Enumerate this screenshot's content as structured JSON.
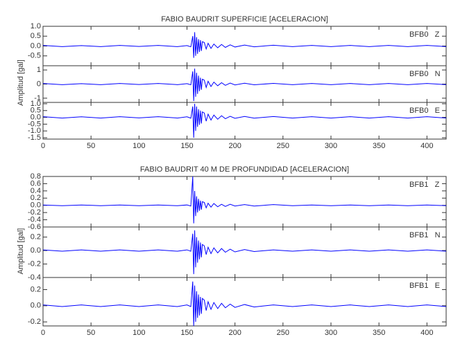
{
  "chart_data": [
    {
      "type": "line",
      "title": "FABIO BAUDRIT SUPERFICIE [ACELERACION]",
      "ylabel": "Amplitud [gal]",
      "color": "#0000ff",
      "xlim": [
        0,
        420
      ],
      "xticks": [
        0,
        50,
        100,
        150,
        200,
        250,
        300,
        350,
        400
      ],
      "x": [
        0,
        20,
        40,
        60,
        80,
        100,
        120,
        140,
        150,
        154,
        156,
        157,
        158,
        159,
        160,
        161,
        162,
        163,
        164,
        165,
        166,
        168,
        170,
        172,
        175,
        178,
        182,
        186,
        190,
        195,
        200,
        210,
        220,
        240,
        260,
        280,
        300,
        320,
        340,
        360,
        380,
        400,
        420
      ],
      "panels": [
        {
          "label": "BFB0   Z",
          "ylim": [
            -1,
            1
          ],
          "yticks": [
            {
              "value": 1,
              "label": "1.0"
            },
            {
              "value": 0.5,
              "label": "0.5"
            },
            {
              "value": 0,
              "label": "0.0"
            },
            {
              "value": -0.5,
              "label": "-0.5"
            }
          ],
          "values": [
            0.03,
            -0.03,
            0.02,
            -0.03,
            0.03,
            -0.02,
            0.03,
            -0.03,
            0.02,
            -0.04,
            0.5,
            -0.6,
            0.7,
            -0.5,
            0.45,
            -0.4,
            0.35,
            -0.3,
            0.3,
            -0.25,
            0.22,
            0.18,
            -0.15,
            0.14,
            -0.12,
            0.1,
            -0.09,
            0.08,
            -0.07,
            0.06,
            -0.05,
            0.05,
            -0.04,
            0.04,
            -0.03,
            0.03,
            -0.03,
            0.03,
            -0.03,
            0.03,
            -0.03,
            0.03,
            -0.03
          ]
        },
        {
          "label": "BFB0   N",
          "ylim": [
            -1.3,
            1.3
          ],
          "yticks": [
            1,
            0,
            -1
          ],
          "values": [
            0.04,
            -0.04,
            0.03,
            -0.04,
            0.04,
            -0.03,
            0.04,
            -0.04,
            0.03,
            -0.05,
            0.9,
            -1.2,
            1.1,
            -0.9,
            0.8,
            -0.7,
            0.6,
            -0.5,
            0.45,
            -0.4,
            0.35,
            0.28,
            -0.24,
            0.2,
            -0.17,
            0.14,
            -0.12,
            0.1,
            -0.09,
            0.07,
            -0.06,
            0.06,
            -0.05,
            0.05,
            -0.04,
            0.04,
            -0.04,
            0.04,
            -0.04,
            0.04,
            -0.04,
            0.04,
            -0.04
          ]
        },
        {
          "label": "BFB0   E",
          "ylim": [
            -1.6,
            1.1
          ],
          "yticks": [
            {
              "value": 1,
              "label": "1.0"
            },
            {
              "value": 0.5,
              "label": "0.5"
            },
            {
              "value": 0,
              "label": "0.0"
            },
            {
              "value": -0.5,
              "label": "-0.5"
            },
            {
              "value": -1,
              "label": "-1.0"
            },
            {
              "value": -1.5,
              "label": "-1.5"
            }
          ],
          "values": [
            0.05,
            -0.05,
            0.04,
            -0.05,
            0.05,
            -0.04,
            0.05,
            -0.05,
            0.04,
            -0.06,
            0.8,
            -1.5,
            1.0,
            -1.0,
            0.8,
            -0.7,
            0.6,
            -0.55,
            0.5,
            -0.45,
            0.4,
            0.32,
            -0.28,
            0.24,
            -0.2,
            0.17,
            -0.14,
            0.12,
            -0.1,
            0.08,
            -0.07,
            0.07,
            -0.06,
            0.06,
            -0.05,
            0.05,
            -0.05,
            0.05,
            -0.05,
            0.05,
            -0.05,
            0.05,
            -0.05
          ]
        }
      ]
    },
    {
      "type": "line",
      "title": "FABIO BAUDRIT 40 M DE PROFUNDIDAD [ACELERACION]",
      "ylabel": "Amplitud [gal]",
      "color": "#0000ff",
      "xlim": [
        0,
        420
      ],
      "xticks": [
        0,
        50,
        100,
        150,
        200,
        250,
        300,
        350,
        400
      ],
      "x": [
        0,
        20,
        40,
        60,
        80,
        100,
        120,
        140,
        150,
        154,
        156,
        157,
        158,
        159,
        160,
        161,
        162,
        163,
        164,
        165,
        166,
        168,
        170,
        172,
        175,
        178,
        182,
        186,
        190,
        195,
        200,
        210,
        220,
        240,
        260,
        280,
        300,
        320,
        340,
        360,
        380,
        400,
        420
      ],
      "panels": [
        {
          "label": "BFB1   Z",
          "ylim": [
            -0.6,
            0.8
          ],
          "yticks": [
            0.8,
            0.6,
            0.4,
            0.2,
            {
              "value": 0,
              "label": "0.0"
            },
            -0.2,
            -0.4,
            -0.6
          ],
          "values": [
            0.01,
            -0.01,
            0.01,
            -0.01,
            0.01,
            -0.01,
            0.01,
            -0.01,
            0.01,
            -0.02,
            0.8,
            -0.5,
            0.4,
            -0.3,
            0.25,
            -0.2,
            0.18,
            -0.15,
            0.13,
            -0.12,
            0.1,
            0.08,
            -0.07,
            0.06,
            -0.05,
            0.05,
            -0.04,
            0.03,
            -0.03,
            0.03,
            -0.02,
            0.02,
            -0.02,
            0.02,
            -0.01,
            0.01,
            -0.01,
            0.01,
            -0.01,
            0.01,
            -0.01,
            0.01,
            -0.01
          ]
        },
        {
          "label": "BFB1   N",
          "ylim": [
            -0.4,
            0.35
          ],
          "yticks": [
            0.2,
            {
              "value": 0,
              "label": "0.0"
            },
            -0.2,
            -0.4
          ],
          "values": [
            0.01,
            -0.01,
            0.01,
            -0.01,
            0.01,
            -0.01,
            0.01,
            -0.01,
            0.01,
            -0.01,
            0.25,
            -0.35,
            0.3,
            -0.25,
            0.2,
            -0.18,
            0.15,
            -0.13,
            0.12,
            -0.1,
            0.09,
            0.07,
            -0.06,
            0.05,
            -0.045,
            0.04,
            -0.035,
            0.03,
            -0.025,
            0.02,
            -0.02,
            0.015,
            -0.015,
            0.01,
            -0.01,
            0.01,
            -0.01,
            0.01,
            -0.01,
            0.01,
            -0.01,
            0.01,
            -0.01
          ]
        },
        {
          "label": "BFB1   E",
          "ylim": [
            -0.25,
            0.35
          ],
          "yticks": [
            0.2,
            {
              "value": 0,
              "label": "0.0"
            },
            -0.2
          ],
          "values": [
            0.01,
            -0.01,
            0.01,
            -0.01,
            0.01,
            -0.01,
            0.01,
            -0.01,
            0.01,
            -0.01,
            0.3,
            -0.25,
            0.25,
            -0.2,
            0.18,
            -0.15,
            0.14,
            -0.12,
            0.11,
            -0.1,
            0.09,
            0.07,
            -0.06,
            0.05,
            -0.045,
            0.04,
            -0.035,
            0.03,
            -0.025,
            0.02,
            -0.02,
            0.015,
            -0.015,
            0.01,
            -0.01,
            0.01,
            -0.01,
            0.01,
            -0.01,
            0.01,
            -0.01,
            0.01,
            -0.01
          ]
        }
      ]
    }
  ]
}
